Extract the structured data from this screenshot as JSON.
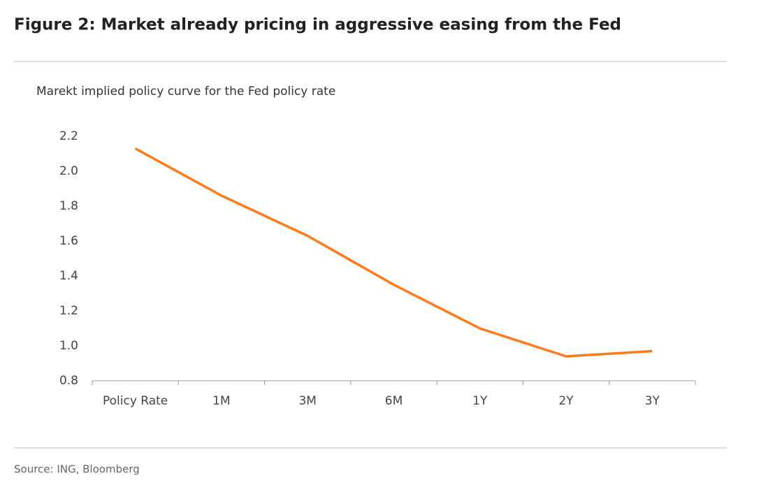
{
  "chart_data": {
    "type": "line",
    "title": "Figure 2: Market already pricing in aggressive easing from the Fed",
    "subtitle": "Marekt implied policy curve for the Fed policy rate",
    "source": "Source: ING, Bloomberg",
    "categories": [
      "Policy Rate",
      "1M",
      "3M",
      "6M",
      "1Y",
      "2Y",
      "3Y"
    ],
    "values": [
      2.13,
      1.86,
      1.63,
      1.35,
      1.1,
      0.94,
      0.97
    ],
    "color": "#ff7a1a",
    "ylim": [
      0.8,
      2.2
    ],
    "yticks": [
      {
        "value": 0.8,
        "label": "0.8"
      },
      {
        "value": 1.0,
        "label": "1.0"
      },
      1.2,
      1.4,
      1.6,
      1.8,
      {
        "value": 2.0,
        "label": "2.0"
      },
      2.2
    ],
    "grid": false
  }
}
